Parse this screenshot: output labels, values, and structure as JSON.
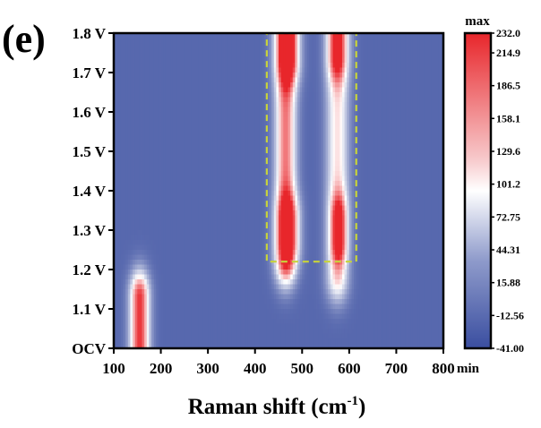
{
  "chart_data": {
    "type": "heatmap",
    "panel_label": "(e)",
    "xlabel_main": "Raman shift (cm",
    "xlabel_sup": "-1",
    "xlabel_close": ")",
    "ylabel": "",
    "xlim": [
      100,
      800
    ],
    "x_ticks": [
      "100",
      "200",
      "300",
      "400",
      "500",
      "600",
      "700",
      "800"
    ],
    "y_ticks": [
      "OCV",
      "1.1 V",
      "1.2 V",
      "1.3 V",
      "1.4 V",
      "1.5 V",
      "1.6 V",
      "1.7 V",
      "1.8 V"
    ],
    "y_values": [
      1.0,
      1.1,
      1.2,
      1.3,
      1.4,
      1.5,
      1.6,
      1.7,
      1.8
    ],
    "colorbar": {
      "max_label": "max",
      "min_label": "min",
      "range": [
        -41.0,
        232.0
      ],
      "ticks": [
        "232.0",
        "214.9",
        "186.5",
        "158.1",
        "129.6",
        "101.2",
        "72.75",
        "44.31",
        "15.88",
        "-12.56",
        "-41.00"
      ],
      "tick_values": [
        232.0,
        214.9,
        186.5,
        158.1,
        129.6,
        101.2,
        72.75,
        44.31,
        15.88,
        -12.56,
        -41.0
      ],
      "colors": [
        "#3a4ea0",
        "#ffffff",
        "#e8262b"
      ]
    },
    "background_value": -20,
    "peaks": [
      {
        "x": 155,
        "x_width": 14,
        "y_center": 1.05,
        "y_halfspan": 0.08,
        "value": 225
      },
      {
        "x": 465,
        "x_width": 15,
        "y_center": 1.52,
        "y_halfspan": 0.3,
        "value": 185
      },
      {
        "x": 470,
        "x_width": 16,
        "y_center": 1.78,
        "y_halfspan": 0.05,
        "value": 175
      },
      {
        "x": 470,
        "x_width": 16,
        "y_center": 1.3,
        "y_halfspan": 0.03,
        "value": 150
      },
      {
        "x": 575,
        "x_width": 16,
        "y_center": 1.5,
        "y_halfspan": 0.32,
        "value": 120
      },
      {
        "x": 575,
        "x_width": 14,
        "y_center": 1.78,
        "y_halfspan": 0.04,
        "value": 140
      },
      {
        "x": 578,
        "x_width": 12,
        "y_center": 1.3,
        "y_halfspan": 0.03,
        "value": 150
      }
    ],
    "highlight_box": {
      "x": [
        425,
        615
      ],
      "y": [
        1.22,
        1.8
      ],
      "color": "#c8d43a"
    }
  }
}
